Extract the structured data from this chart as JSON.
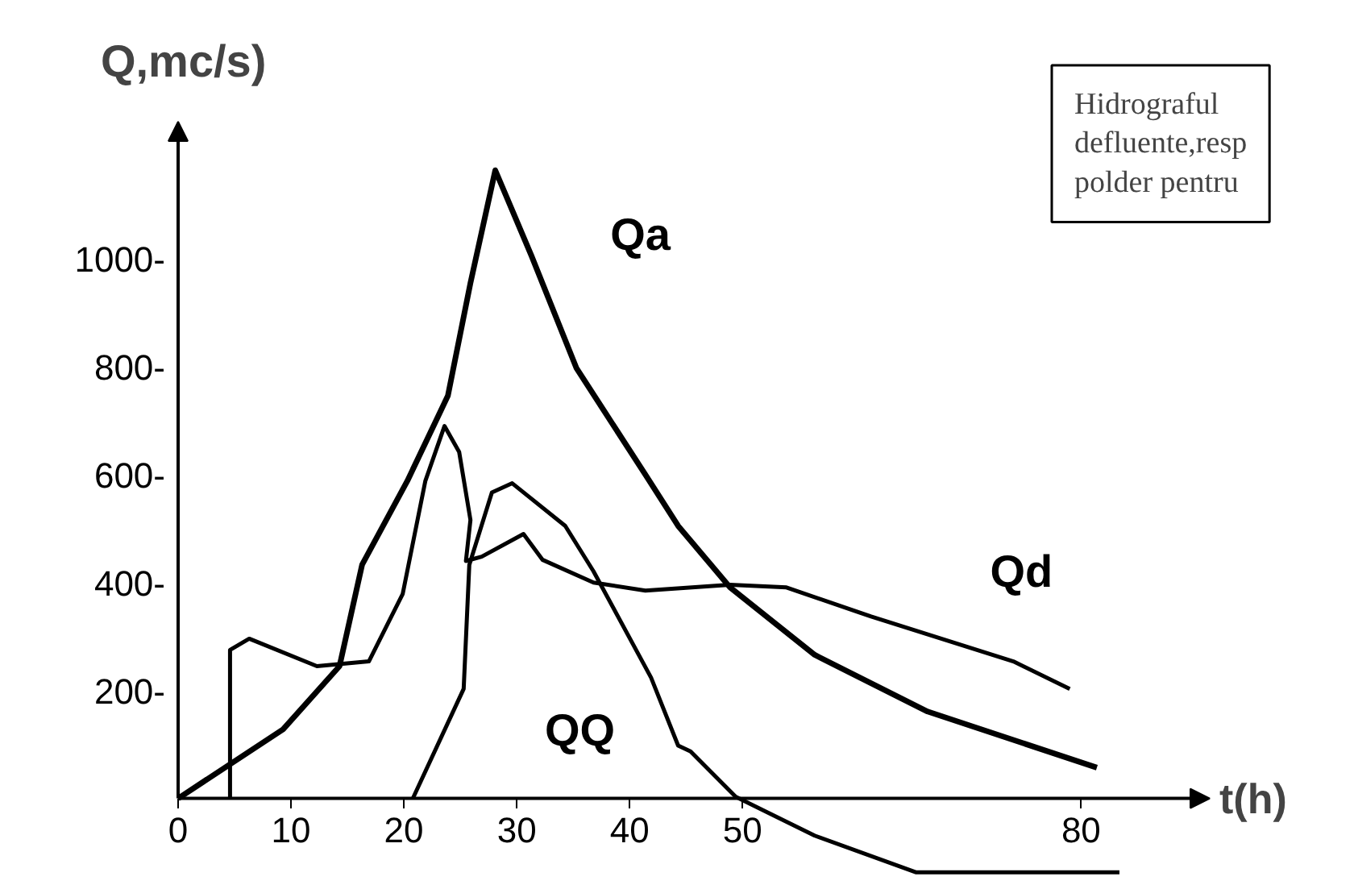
{
  "chart_data": {
    "type": "line",
    "xlabel": "t(h)",
    "ylabel": "Q,mc/s)",
    "xlim": [
      0,
      91.4
    ],
    "ylim": [
      -150,
      1254
    ],
    "xticks": [
      0,
      10,
      20,
      30,
      40,
      50,
      80
    ],
    "yticks": [
      {
        "value": 200,
        "label": "200-"
      },
      {
        "value": 400,
        "label": "400-"
      },
      {
        "value": 600,
        "label": "600-"
      },
      {
        "value": 800,
        "label": "800-"
      },
      {
        "value": 1000,
        "label": "1000-"
      }
    ],
    "grid": false,
    "legend": false,
    "marker": "none",
    "line_style": "solid",
    "series": [
      {
        "name": "Qa",
        "color": "#000000",
        "x": [
          0,
          9.3,
          14.3,
          16.3,
          20.3,
          23.9,
          25.9,
          28.1,
          31.3,
          35.3,
          41.4,
          44.3,
          48.9,
          56.4,
          66.4,
          81.4
        ],
        "values": [
          0,
          128,
          245,
          433,
          588,
          746,
          955,
          1164,
          1006,
          797,
          600,
          505,
          391,
          266,
          161,
          57
        ]
      },
      {
        "name": "Qd",
        "color": "#000000",
        "x": [
          4.6,
          4.6,
          6.3,
          12.3,
          16.9,
          19.9,
          21.9,
          23.6,
          24.9,
          25.9,
          25.5,
          26.9,
          30.6,
          32.3,
          36.8,
          41.4,
          48.9,
          53.9,
          61.4,
          74,
          79
        ],
        "values": [
          0,
          275,
          296,
          245,
          254,
          379,
          588,
          690,
          642,
          516,
          440,
          448,
          490,
          442,
          400,
          385,
          396,
          391,
          337,
          254,
          203
        ]
      },
      {
        "name": "QQ",
        "color": "#000000",
        "x": [
          20.8,
          25.3,
          25.8,
          27.8,
          29.6,
          34.3,
          36.8,
          41.9,
          44.3,
          45.4,
          49.4,
          56.4,
          65.4,
          83.4
        ],
        "values": [
          0,
          203,
          433,
          567,
          584,
          505,
          421,
          224,
          98,
          87,
          3,
          -69,
          -137,
          -137
        ]
      }
    ],
    "annotations": [
      "Hidrograful\ndefluente,resp\npolder pentru"
    ]
  }
}
